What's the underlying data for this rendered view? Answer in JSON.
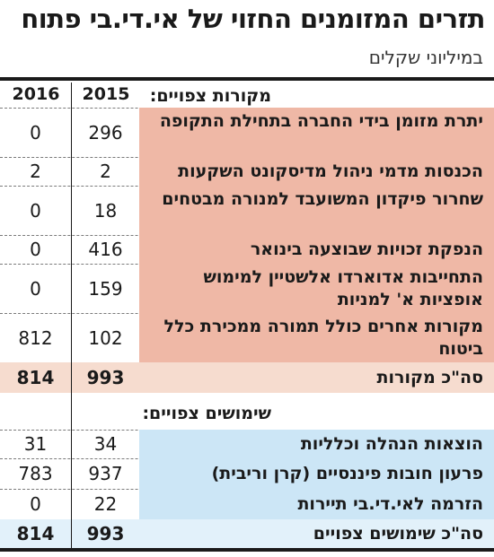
{
  "title": "תזרים המזומנים החזוי של אי.די.בי פתוח",
  "subtitle": "במיליוני שקלים",
  "colors": {
    "sources_fill": "#efb8a6",
    "sources_total_fill": "#f6dccf",
    "uses_fill": "#cce6f6",
    "uses_total_fill": "#e2f1fa",
    "line": "#1a1a1a"
  },
  "chart_data": {
    "type": "table",
    "title": "תזרים המזומנים החזוי של אי.די.בי פתוח",
    "subtitle": "במיליוני שקלים",
    "columns": [
      "2016",
      "2015"
    ],
    "sections": [
      {
        "label": "מקורות צפויים:",
        "rows": [
          {
            "label": "יתרת מזומן בידי החברה בתחילת התקופה",
            "v2015": "296",
            "v2016": "0"
          },
          {
            "label": "הכנסות מדמי ניהול מדיסקונט השקעות",
            "v2015": "2",
            "v2016": "2"
          },
          {
            "label": "שחרור פיקדון המשועבד למנורה מבטחים",
            "v2015": "18",
            "v2016": "0"
          },
          {
            "label": "הנפקת זכויות שבוצעה בינואר",
            "v2015": "416",
            "v2016": "0"
          },
          {
            "label": "התחייבות אדוארדו אלשטיין למימוש אופציות א' למניות",
            "v2015": "159",
            "v2016": "0"
          },
          {
            "label": "מקורות אחרים כולל תמורה ממכירת כלל ביטוח",
            "v2015": "102",
            "v2016": "812"
          }
        ],
        "total": {
          "label": "סה\"כ מקורות",
          "v2015": "993",
          "v2016": "814"
        }
      },
      {
        "label": "שימושים צפויים:",
        "rows": [
          {
            "label": "הוצאות הנהלה וכלליות",
            "v2015": "34",
            "v2016": "31"
          },
          {
            "label": "פרעון חובות פיננסיים (קרן וריבית)",
            "v2015": "937",
            "v2016": "783"
          },
          {
            "label": "הזרמה לאי.די.בי תיירות",
            "v2015": "22",
            "v2016": "0"
          }
        ],
        "total": {
          "label": "סה\"כ שימושים צפויים",
          "v2015": "993",
          "v2016": "814"
        }
      }
    ]
  }
}
